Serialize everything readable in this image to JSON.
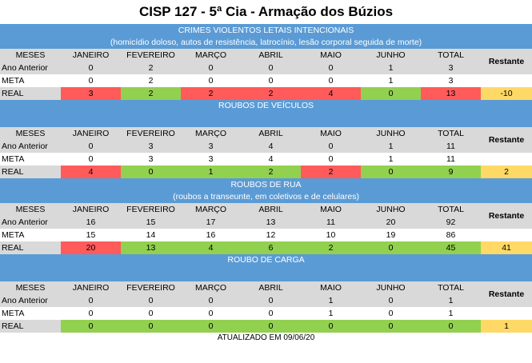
{
  "title": "CISP 127 - 5ª Cia - Armação dos Búzios",
  "columns": {
    "meses": "MESES",
    "months": [
      "JANEIRO",
      "FEVEREIRO",
      "MARÇO",
      "ABRIL",
      "MAIO",
      "JUNHO"
    ],
    "total": "TOTAL",
    "restante": "Restante"
  },
  "row_labels": {
    "ano_anterior": "Ano Anterior",
    "meta": "META",
    "real": "REAL"
  },
  "sections": [
    {
      "heading": "CRIMES VIOLENTOS LETAIS INTENCIONAIS",
      "subheading": "(homicídio doloso, autos de resistência, latrocínio, lesão corporal seguida de morte)",
      "ano_anterior": [
        "0",
        "2",
        "0",
        "0",
        "0",
        "1",
        "3"
      ],
      "meta": [
        "0",
        "2",
        "0",
        "0",
        "0",
        "1",
        "3"
      ],
      "real": [
        "3",
        "2",
        "2",
        "2",
        "4",
        "0",
        "13"
      ],
      "real_status": [
        "red",
        "green",
        "red",
        "red",
        "red",
        "green",
        "red"
      ],
      "restante": "-10"
    },
    {
      "heading": "ROUBOS DE VEÍCULOS",
      "subheading": "",
      "ano_anterior": [
        "0",
        "3",
        "3",
        "4",
        "0",
        "1",
        "11"
      ],
      "meta": [
        "0",
        "3",
        "3",
        "4",
        "0",
        "1",
        "11"
      ],
      "real": [
        "4",
        "0",
        "1",
        "2",
        "2",
        "0",
        "9"
      ],
      "real_status": [
        "red",
        "green",
        "green",
        "green",
        "red",
        "green",
        "green"
      ],
      "restante": "2"
    },
    {
      "heading": "ROUBOS DE RUA",
      "subheading": "(roubos a transeunte, em coletivos e de celulares)",
      "ano_anterior": [
        "16",
        "15",
        "17",
        "13",
        "11",
        "20",
        "92"
      ],
      "meta": [
        "15",
        "14",
        "16",
        "12",
        "10",
        "19",
        "86"
      ],
      "real": [
        "20",
        "13",
        "4",
        "6",
        "2",
        "0",
        "45"
      ],
      "real_status": [
        "red",
        "green",
        "green",
        "green",
        "green",
        "green",
        "green"
      ],
      "restante": "41"
    },
    {
      "heading": "ROUBO DE CARGA",
      "subheading": "",
      "ano_anterior": [
        "0",
        "0",
        "0",
        "0",
        "1",
        "0",
        "1"
      ],
      "meta": [
        "0",
        "0",
        "0",
        "0",
        "1",
        "0",
        "1"
      ],
      "real": [
        "0",
        "0",
        "0",
        "0",
        "0",
        "0",
        "0"
      ],
      "real_status": [
        "green",
        "green",
        "green",
        "green",
        "green",
        "green",
        "green"
      ],
      "restante": "1"
    }
  ],
  "footer": "ATUALIZADO EM 09/06/20",
  "colors": {
    "header_blue": "#5b9bd5",
    "red": "#ff5b5b",
    "green": "#92d050",
    "yellow": "#ffd966",
    "gray": "#d9d9d9"
  }
}
